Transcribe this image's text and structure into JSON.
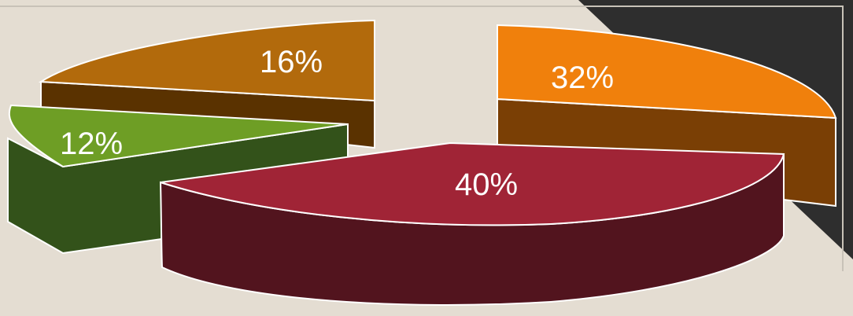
{
  "chart_data": {
    "type": "pie",
    "title": "",
    "exploded": true,
    "three_d": true,
    "slices": [
      {
        "label": "16%",
        "value": 16,
        "color": "#b26a0c",
        "side_color": "#5a3200"
      },
      {
        "label": "32%",
        "value": 32,
        "color": "#f0800c",
        "side_color": "#7a3f05"
      },
      {
        "label": "40%",
        "value": 40,
        "color": "#a02436",
        "side_color": "#52141e"
      },
      {
        "label": "12%",
        "value": 12,
        "color": "#6e9e25",
        "side_color": "#33521a"
      }
    ]
  }
}
